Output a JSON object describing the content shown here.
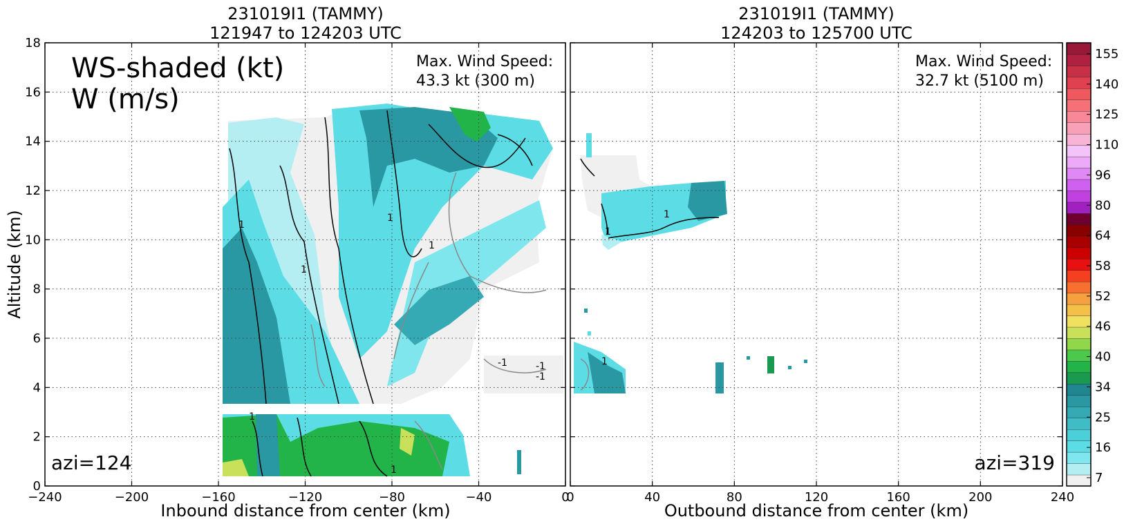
{
  "chart_data": [
    {
      "type": "heatmap",
      "panel": "inbound",
      "title": "231019I1 (TAMMY)",
      "subtitle": "121947 to 124203 UTC",
      "xlabel": "Inbound distance from center (km)",
      "ylabel": "Altitude (km)",
      "xlim": [
        -240,
        0
      ],
      "ylim": [
        0,
        18
      ],
      "xticks": [
        -240,
        -200,
        -160,
        -120,
        -80,
        -40,
        0
      ],
      "yticks": [
        0,
        2,
        4,
        6,
        8,
        10,
        12,
        14,
        16,
        18
      ],
      "grid": true,
      "annotations": {
        "field_line1": "WS-shaded (kt)",
        "field_line2": "W (m/s)",
        "max_label": "Max. Wind Speed:",
        "max_value": "43.3 kt (300 m)",
        "azimuth": "azi=124"
      },
      "contour_label": "1",
      "contour_label_neg": "-1",
      "data_x_range": [
        -158,
        0
      ],
      "data_y_range": [
        0,
        15.5
      ]
    },
    {
      "type": "heatmap",
      "panel": "outbound",
      "title": "231019I1 (TAMMY)",
      "subtitle": "124203 to 125700 UTC",
      "xlabel": "Outbound distance from center (km)",
      "xlim": [
        0,
        240
      ],
      "ylim": [
        0,
        18
      ],
      "xticks": [
        0,
        40,
        80,
        120,
        160,
        200,
        240
      ],
      "grid": true,
      "annotations": {
        "max_label": "Max. Wind Speed:",
        "max_value": "32.7 kt (5100 m)",
        "azimuth": "azi=319"
      },
      "contour_label": "1"
    }
  ],
  "colorbar": {
    "ticks": [
      "155",
      "140",
      "125",
      "110",
      "96",
      "80",
      "64",
      "58",
      "52",
      "46",
      "40",
      "34",
      "25",
      "16",
      "7"
    ],
    "colors": [
      "#f0f0f0",
      "#b4eef2",
      "#80e6ee",
      "#5cdde6",
      "#4ccfd8",
      "#40bcc6",
      "#35aab4",
      "#2a98a2",
      "#20868f",
      "#1a9a50",
      "#22b448",
      "#4cc84a",
      "#90d84a",
      "#c8e05a",
      "#f0e060",
      "#f4c048",
      "#f6a040",
      "#f87030",
      "#f44020",
      "#e81010",
      "#cc0000",
      "#a80000",
      "#880000",
      "#6e0030",
      "#a020c0",
      "#c040e0",
      "#d060f0",
      "#e088f4",
      "#ec aaf8",
      "#f4c4f8",
      "#f8b4d4",
      "#f8a0b8",
      "#f88898",
      "#f67078",
      "#f05860",
      "#e04050",
      "#c83048",
      "#b02040",
      "#981838"
    ]
  }
}
